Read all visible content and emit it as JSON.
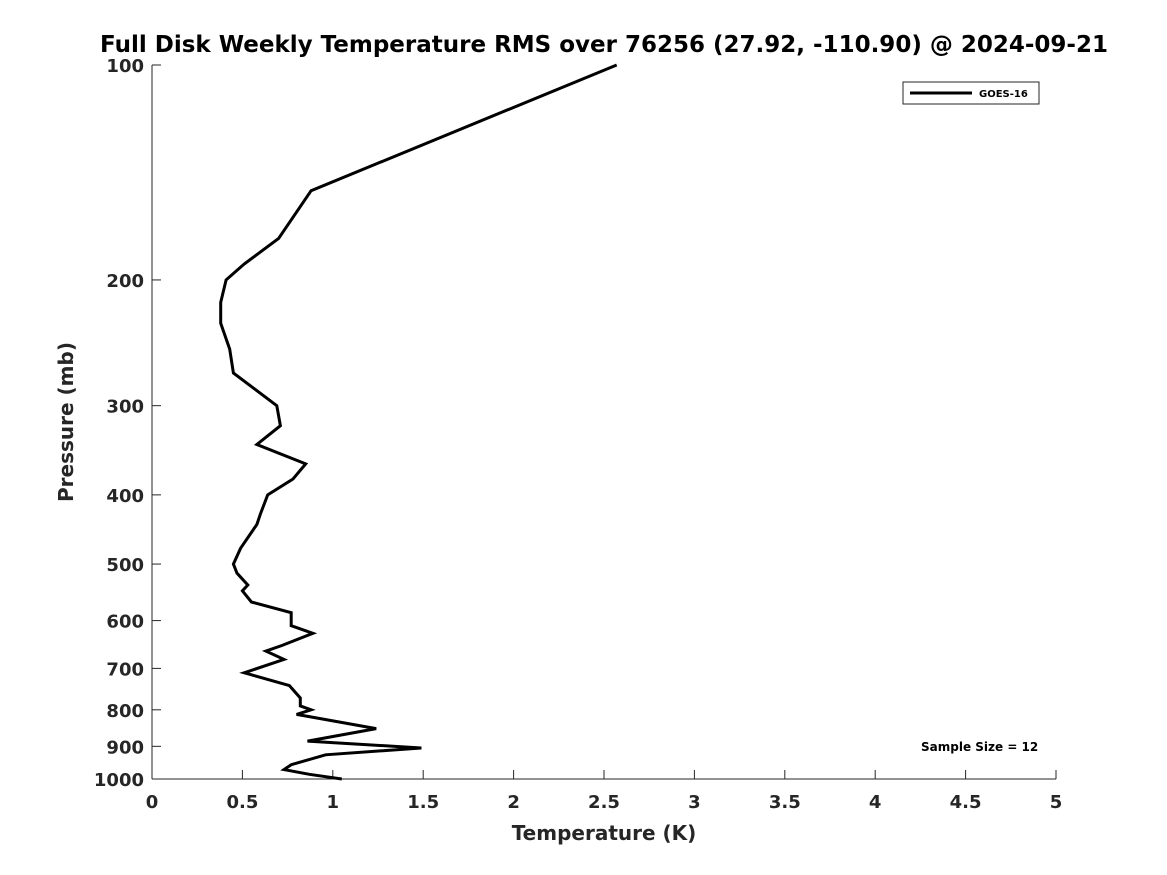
{
  "chart_data": {
    "type": "line",
    "title": "Full Disk Weekly Temperature RMS over 76256 (27.92, -110.90) @ 2024-09-21",
    "xlabel": "Temperature (K)",
    "ylabel": "Pressure (mb)",
    "xlim": [
      0,
      5
    ],
    "ylim": [
      100,
      1000
    ],
    "y_scale": "log",
    "y_reversed": true,
    "grid": false,
    "legend_position": "top-right",
    "x_ticks": [
      "0",
      "0.5",
      "1",
      "1.5",
      "2",
      "2.5",
      "3",
      "3.5",
      "4",
      "4.5",
      "5"
    ],
    "y_ticks": [
      "100",
      "200",
      "300",
      "400",
      "500",
      "600",
      "700",
      "800",
      "900",
      "1000"
    ],
    "annotation": "Sample Size = 12",
    "series": [
      {
        "name": "GOES-16",
        "color": "#000000",
        "points": [
          [
            2.57,
            100
          ],
          [
            0.88,
            150
          ],
          [
            0.7,
            175
          ],
          [
            0.51,
            190
          ],
          [
            0.41,
            200
          ],
          [
            0.38,
            215
          ],
          [
            0.38,
            230
          ],
          [
            0.43,
            250
          ],
          [
            0.45,
            270
          ],
          [
            0.69,
            300
          ],
          [
            0.71,
            320
          ],
          [
            0.58,
            340
          ],
          [
            0.85,
            362
          ],
          [
            0.78,
            380
          ],
          [
            0.64,
            400
          ],
          [
            0.6,
            425
          ],
          [
            0.58,
            440
          ],
          [
            0.49,
            475
          ],
          [
            0.45,
            500
          ],
          [
            0.47,
            515
          ],
          [
            0.53,
            535
          ],
          [
            0.5,
            545
          ],
          [
            0.55,
            565
          ],
          [
            0.77,
            585
          ],
          [
            0.77,
            610
          ],
          [
            0.89,
            625
          ],
          [
            0.72,
            650
          ],
          [
            0.63,
            662
          ],
          [
            0.73,
            680
          ],
          [
            0.51,
            710
          ],
          [
            0.76,
            740
          ],
          [
            0.82,
            770
          ],
          [
            0.82,
            790
          ],
          [
            0.88,
            800
          ],
          [
            0.8,
            812
          ],
          [
            1.24,
            850
          ],
          [
            0.86,
            885
          ],
          [
            1.49,
            905
          ],
          [
            0.96,
            925
          ],
          [
            0.77,
            955
          ],
          [
            0.73,
            970
          ],
          [
            0.87,
            985
          ],
          [
            1.05,
            1000
          ]
        ]
      }
    ]
  }
}
